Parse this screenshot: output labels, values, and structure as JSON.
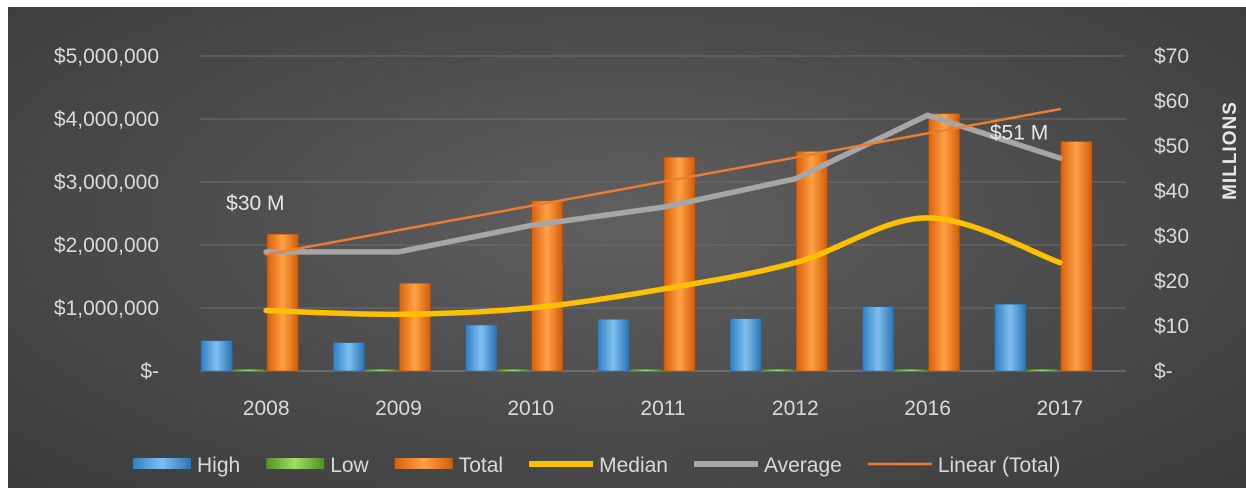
{
  "chart_data": {
    "type": "bar",
    "categories": [
      "2008",
      "2009",
      "2010",
      "2011",
      "2012",
      "2016",
      "2017"
    ],
    "left_axis": {
      "ticks": [
        0,
        1000000,
        2000000,
        3000000,
        4000000,
        5000000
      ],
      "tick_labels": [
        "$-",
        "$1,000,000",
        "$2,000,000",
        "$3,000,000",
        "$4,000,000",
        "$5,000,000"
      ],
      "ylim": [
        0,
        5000000
      ]
    },
    "right_axis": {
      "label": "MILLIONS",
      "ticks": [
        0,
        10,
        20,
        30,
        40,
        50,
        60,
        70
      ],
      "tick_labels": [
        "$-",
        "$10",
        "$20",
        "$30",
        "$40",
        "$50",
        "$60",
        "$70"
      ],
      "ylim": [
        0,
        70
      ]
    },
    "series": [
      {
        "name": "High",
        "kind": "bar",
        "axis": "left",
        "color": "#4a9edb",
        "values": [
          480000,
          450000,
          730000,
          820000,
          830000,
          1020000,
          1060000
        ]
      },
      {
        "name": "Low",
        "kind": "bar",
        "axis": "left",
        "color": "#70ad47",
        "values": [
          0,
          0,
          0,
          0,
          0,
          0,
          0
        ]
      },
      {
        "name": "Total",
        "kind": "bar",
        "axis": "right",
        "color": "#f07d1a",
        "values": [
          30.4,
          19.5,
          37.8,
          47.5,
          48.8,
          57.2,
          51.0
        ]
      },
      {
        "name": "Median",
        "kind": "line",
        "axis": "left",
        "color": "#ffc000",
        "values": [
          960000,
          900000,
          1000000,
          1300000,
          1720000,
          2430000,
          1720000
        ]
      },
      {
        "name": "Average",
        "kind": "line",
        "axis": "left",
        "color": "#a6a6a6",
        "values": [
          1890000,
          1890000,
          2310000,
          2600000,
          3050000,
          4060000,
          3380000
        ]
      },
      {
        "name": "Linear (Total)",
        "kind": "trendline",
        "axis": "right",
        "color": "#ed7d31",
        "values": [
          25.9,
          29.4,
          34.0,
          38.6,
          43.0,
          50.6,
          58.2
        ]
      }
    ],
    "annotations": [
      {
        "text": "$30 M",
        "category": "2008",
        "series": "Total"
      },
      {
        "text": "$51 M",
        "category": "2017",
        "series": "Total"
      }
    ],
    "grid": true,
    "legend": "bottom"
  }
}
